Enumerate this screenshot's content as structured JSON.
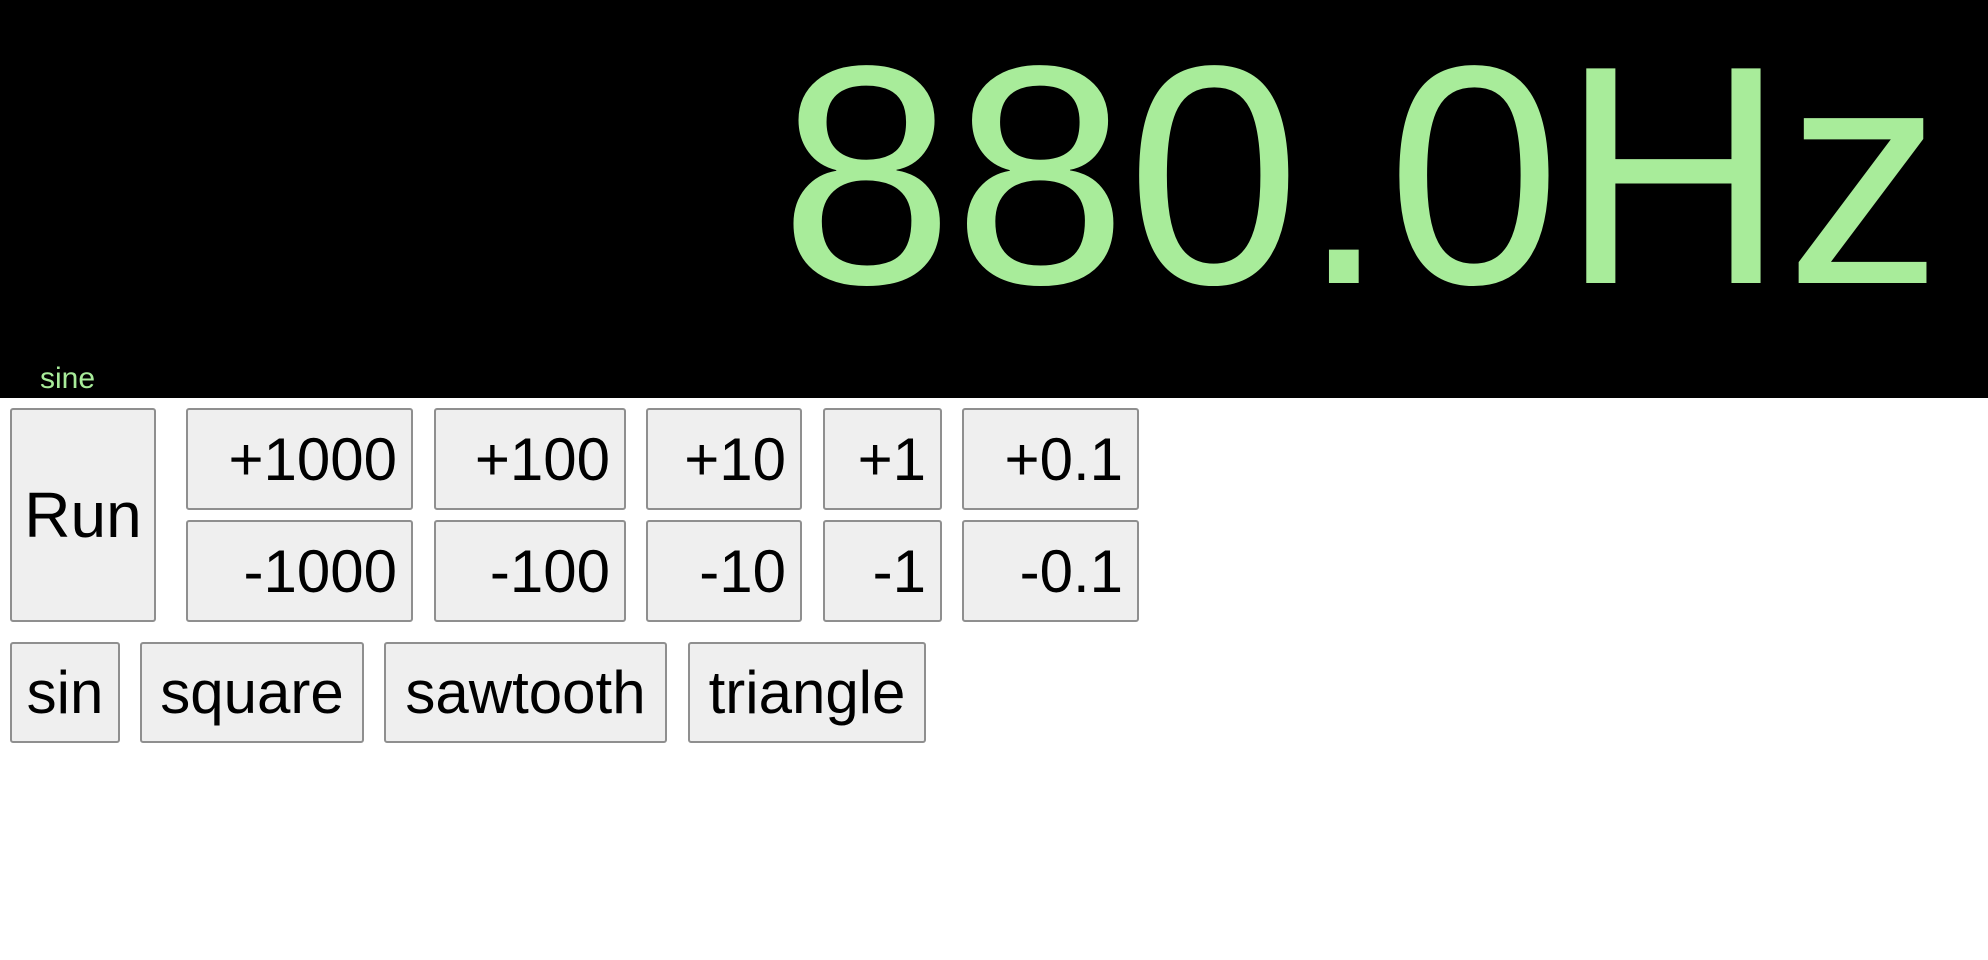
{
  "display": {
    "frequency": "880.0Hz",
    "waveform": "sine"
  },
  "controls": {
    "run_label": "Run",
    "increase": [
      "+1000",
      "+100",
      "+10",
      "+1",
      "+0.1"
    ],
    "decrease": [
      "-1000",
      "-100",
      "-10",
      "-1",
      "-0.1"
    ]
  },
  "waveforms": [
    "sin",
    "square",
    "sawtooth",
    "triangle"
  ],
  "colors": {
    "display_bg": "#000000",
    "display_text": "#a8ec9a",
    "button_bg": "#efefef",
    "button_border": "#8f8f8f"
  }
}
